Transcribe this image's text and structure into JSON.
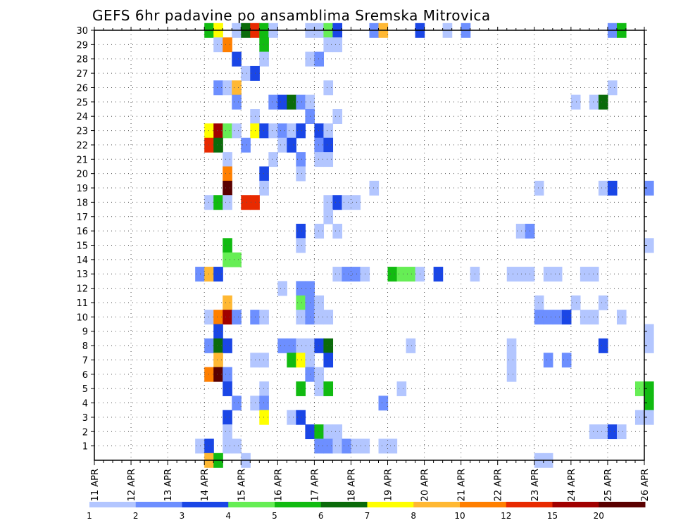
{
  "chart_data": {
    "type": "heatmap",
    "title": "GEFS 6hr padavine po ansamblima Sremska Mitrovica",
    "xlabel": "",
    "ylabel": "",
    "x_ticks": [
      "11 APR",
      "12 APR",
      "13 APR",
      "14 APR",
      "15 APR",
      "16 APR",
      "17 APR",
      "18 APR",
      "19 APR",
      "20 APR",
      "21 APR",
      "22 APR",
      "23 APR",
      "24 APR",
      "25 APR",
      "26 APR"
    ],
    "x_range": [
      "11 APR 00:00",
      "26 APR 00:00"
    ],
    "x_step": "6 hr",
    "y_ticks": [
      1,
      2,
      3,
      4,
      5,
      6,
      7,
      8,
      9,
      10,
      11,
      12,
      13,
      14,
      15,
      16,
      17,
      18,
      19,
      20,
      21,
      22,
      23,
      24,
      25,
      26,
      27,
      28,
      29,
      30
    ],
    "y_range": [
      0,
      30
    ],
    "grid": true,
    "colorbar": {
      "labels": [
        "1",
        "2",
        "3",
        "4",
        "5",
        "6",
        "7",
        "8",
        "10",
        "12",
        "15",
        "20"
      ],
      "colors": [
        "#b3c6ff",
        "#6d8fff",
        "#1a46e6",
        "#66ee55",
        "#11bb11",
        "#0a6b0a",
        "#ffff00",
        "#ffb833",
        "#ff7f00",
        "#e82a00",
        "#a10000",
        "#5a0000"
      ]
    },
    "values_legend": "cells as [member, time index from 11 APR 00:00 in 6h steps, precipitation class]",
    "cells": [
      [
        30,
        12,
        5
      ],
      [
        30,
        13,
        7
      ],
      [
        30,
        15,
        1
      ],
      [
        30,
        16,
        6
      ],
      [
        30,
        17,
        10
      ],
      [
        30,
        18,
        5
      ],
      [
        30,
        19,
        1
      ],
      [
        30,
        23,
        1
      ],
      [
        30,
        24,
        1
      ],
      [
        30,
        25,
        4
      ],
      [
        30,
        26,
        3
      ],
      [
        30,
        30,
        2
      ],
      [
        30,
        31,
        8
      ],
      [
        30,
        35,
        3
      ],
      [
        30,
        38,
        1
      ],
      [
        30,
        40,
        2
      ],
      [
        30,
        56,
        2
      ],
      [
        30,
        57,
        5
      ],
      [
        29,
        13,
        1
      ],
      [
        29,
        14,
        9
      ],
      [
        29,
        18,
        5
      ],
      [
        29,
        25,
        1
      ],
      [
        29,
        26,
        1
      ],
      [
        28,
        15,
        3
      ],
      [
        28,
        18,
        1
      ],
      [
        28,
        23,
        1
      ],
      [
        28,
        24,
        2
      ],
      [
        27,
        16,
        1
      ],
      [
        27,
        17,
        3
      ],
      [
        26,
        13,
        2
      ],
      [
        26,
        14,
        1
      ],
      [
        26,
        15,
        8
      ],
      [
        26,
        25,
        1
      ],
      [
        26,
        56,
        1
      ],
      [
        25,
        15,
        2
      ],
      [
        25,
        19,
        2
      ],
      [
        25,
        20,
        3
      ],
      [
        25,
        21,
        6
      ],
      [
        25,
        22,
        2
      ],
      [
        25,
        23,
        1
      ],
      [
        25,
        52,
        1
      ],
      [
        25,
        54,
        1
      ],
      [
        25,
        55,
        6
      ],
      [
        24,
        17,
        1
      ],
      [
        24,
        23,
        2
      ],
      [
        24,
        26,
        1
      ],
      [
        23,
        12,
        7
      ],
      [
        23,
        13,
        11
      ],
      [
        23,
        14,
        4
      ],
      [
        23,
        15,
        1
      ],
      [
        23,
        17,
        7
      ],
      [
        23,
        18,
        3
      ],
      [
        23,
        19,
        1
      ],
      [
        23,
        20,
        2
      ],
      [
        23,
        21,
        1
      ],
      [
        23,
        22,
        3
      ],
      [
        23,
        24,
        3
      ],
      [
        23,
        25,
        1
      ],
      [
        22,
        12,
        10
      ],
      [
        22,
        13,
        6
      ],
      [
        22,
        16,
        2
      ],
      [
        22,
        20,
        1
      ],
      [
        22,
        21,
        3
      ],
      [
        22,
        24,
        2
      ],
      [
        22,
        25,
        3
      ],
      [
        21,
        14,
        1
      ],
      [
        21,
        19,
        1
      ],
      [
        21,
        22,
        2
      ],
      [
        21,
        24,
        1
      ],
      [
        21,
        25,
        1
      ],
      [
        20,
        14,
        9
      ],
      [
        20,
        18,
        3
      ],
      [
        20,
        22,
        1
      ],
      [
        19,
        14,
        12
      ],
      [
        19,
        18,
        1
      ],
      [
        19,
        30,
        1
      ],
      [
        19,
        48,
        1
      ],
      [
        19,
        55,
        1
      ],
      [
        19,
        56,
        3
      ],
      [
        19,
        60,
        2
      ],
      [
        18,
        12,
        1
      ],
      [
        18,
        13,
        5
      ],
      [
        18,
        14,
        1
      ],
      [
        18,
        16,
        10
      ],
      [
        18,
        17,
        10
      ],
      [
        18,
        25,
        1
      ],
      [
        18,
        26,
        3
      ],
      [
        18,
        27,
        1
      ],
      [
        18,
        28,
        1
      ],
      [
        17,
        25,
        1
      ],
      [
        16,
        22,
        3
      ],
      [
        16,
        24,
        1
      ],
      [
        16,
        26,
        1
      ],
      [
        16,
        46,
        1
      ],
      [
        16,
        47,
        2
      ],
      [
        15,
        14,
        5
      ],
      [
        15,
        22,
        1
      ],
      [
        15,
        60,
        1
      ],
      [
        14,
        14,
        4
      ],
      [
        14,
        15,
        4
      ],
      [
        13,
        11,
        2
      ],
      [
        13,
        12,
        8
      ],
      [
        13,
        13,
        3
      ],
      [
        13,
        26,
        1
      ],
      [
        13,
        27,
        2
      ],
      [
        13,
        28,
        2
      ],
      [
        13,
        29,
        1
      ],
      [
        13,
        32,
        5
      ],
      [
        13,
        33,
        4
      ],
      [
        13,
        34,
        4
      ],
      [
        13,
        35,
        1
      ],
      [
        13,
        37,
        3
      ],
      [
        13,
        41,
        1
      ],
      [
        13,
        45,
        1
      ],
      [
        13,
        46,
        1
      ],
      [
        13,
        47,
        1
      ],
      [
        13,
        49,
        1
      ],
      [
        13,
        50,
        1
      ],
      [
        13,
        53,
        1
      ],
      [
        13,
        54,
        1
      ],
      [
        12,
        20,
        1
      ],
      [
        12,
        22,
        2
      ],
      [
        12,
        23,
        2
      ],
      [
        11,
        14,
        8
      ],
      [
        11,
        22,
        4
      ],
      [
        11,
        23,
        2
      ],
      [
        11,
        24,
        1
      ],
      [
        11,
        48,
        1
      ],
      [
        11,
        52,
        1
      ],
      [
        11,
        55,
        1
      ],
      [
        10,
        12,
        1
      ],
      [
        10,
        13,
        9
      ],
      [
        10,
        14,
        11
      ],
      [
        10,
        15,
        2
      ],
      [
        10,
        17,
        2
      ],
      [
        10,
        18,
        1
      ],
      [
        10,
        22,
        1
      ],
      [
        10,
        23,
        2
      ],
      [
        10,
        24,
        1
      ],
      [
        10,
        25,
        1
      ],
      [
        10,
        48,
        2
      ],
      [
        10,
        49,
        2
      ],
      [
        10,
        50,
        2
      ],
      [
        10,
        51,
        3
      ],
      [
        10,
        53,
        1
      ],
      [
        10,
        54,
        1
      ],
      [
        10,
        57,
        1
      ],
      [
        9,
        13,
        3
      ],
      [
        9,
        60,
        1
      ],
      [
        8,
        12,
        2
      ],
      [
        8,
        13,
        6
      ],
      [
        8,
        14,
        3
      ],
      [
        8,
        20,
        2
      ],
      [
        8,
        21,
        2
      ],
      [
        8,
        22,
        1
      ],
      [
        8,
        23,
        1
      ],
      [
        8,
        24,
        3
      ],
      [
        8,
        25,
        6
      ],
      [
        8,
        34,
        1
      ],
      [
        8,
        45,
        1
      ],
      [
        8,
        55,
        3
      ],
      [
        8,
        60,
        1
      ],
      [
        7,
        13,
        8
      ],
      [
        7,
        17,
        1
      ],
      [
        7,
        18,
        1
      ],
      [
        7,
        21,
        5
      ],
      [
        7,
        22,
        7
      ],
      [
        7,
        23,
        1
      ],
      [
        7,
        25,
        3
      ],
      [
        7,
        45,
        1
      ],
      [
        7,
        49,
        2
      ],
      [
        7,
        51,
        2
      ],
      [
        6,
        12,
        9
      ],
      [
        6,
        13,
        12
      ],
      [
        6,
        14,
        2
      ],
      [
        6,
        23,
        2
      ],
      [
        6,
        24,
        1
      ],
      [
        6,
        45,
        1
      ],
      [
        5,
        14,
        3
      ],
      [
        5,
        18,
        1
      ],
      [
        5,
        22,
        5
      ],
      [
        5,
        24,
        1
      ],
      [
        5,
        25,
        5
      ],
      [
        5,
        33,
        1
      ],
      [
        5,
        59,
        4
      ],
      [
        5,
        60,
        5
      ],
      [
        4,
        15,
        2
      ],
      [
        4,
        17,
        1
      ],
      [
        4,
        18,
        2
      ],
      [
        4,
        31,
        2
      ],
      [
        4,
        60,
        5
      ],
      [
        3,
        14,
        3
      ],
      [
        3,
        18,
        7
      ],
      [
        3,
        21,
        1
      ],
      [
        3,
        22,
        3
      ],
      [
        3,
        59,
        1
      ],
      [
        3,
        60,
        1
      ],
      [
        2,
        14,
        1
      ],
      [
        2,
        23,
        3
      ],
      [
        2,
        24,
        5
      ],
      [
        2,
        25,
        1
      ],
      [
        2,
        26,
        1
      ],
      [
        2,
        54,
        1
      ],
      [
        2,
        55,
        1
      ],
      [
        2,
        56,
        3
      ],
      [
        2,
        57,
        1
      ],
      [
        1,
        11,
        1
      ],
      [
        1,
        12,
        3
      ],
      [
        1,
        14,
        1
      ],
      [
        1,
        15,
        1
      ],
      [
        1,
        24,
        2
      ],
      [
        1,
        25,
        2
      ],
      [
        1,
        26,
        1
      ],
      [
        1,
        27,
        2
      ],
      [
        1,
        28,
        1
      ],
      [
        1,
        29,
        1
      ],
      [
        1,
        31,
        1
      ],
      [
        1,
        32,
        1
      ],
      [
        0,
        12,
        8
      ],
      [
        0,
        13,
        5
      ],
      [
        0,
        16,
        1
      ],
      [
        0,
        48,
        1
      ],
      [
        0,
        49,
        1
      ]
    ]
  }
}
